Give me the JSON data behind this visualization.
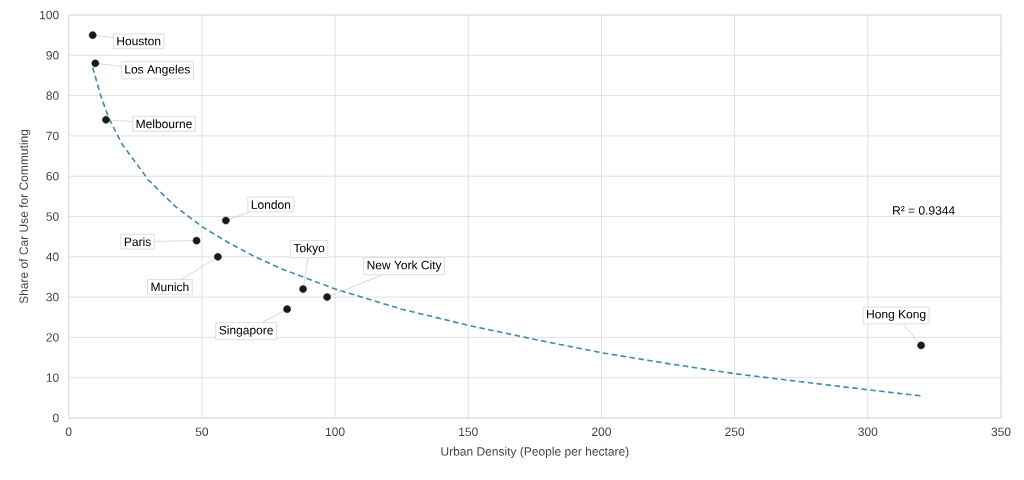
{
  "chart_data": {
    "type": "scatter",
    "xlabel": "Urban Density (People per hectare)",
    "ylabel": "Share of Car Use for Commuting",
    "xlim": [
      0,
      350
    ],
    "ylim": [
      0,
      100
    ],
    "xticks": [
      0,
      50,
      100,
      150,
      200,
      250,
      300,
      350
    ],
    "yticks": [
      0,
      10,
      20,
      30,
      40,
      50,
      60,
      70,
      80,
      90,
      100
    ],
    "grid": true,
    "marker": "circle",
    "series": [
      {
        "color": "#1a1a1a",
        "x": [
          9,
          10,
          14,
          59,
          48,
          56,
          88,
          97,
          82,
          320
        ],
        "values": [
          95,
          88,
          74,
          49,
          44,
          40,
          32,
          30,
          27,
          18
        ]
      },
      {
        "type": "line",
        "color": "#3a8ca8",
        "marker": "none",
        "line_style": "dashed",
        "x": [
          9,
          12,
          15,
          20,
          30,
          40,
          50,
          60,
          70,
          80,
          100,
          125,
          150,
          175,
          200,
          225,
          250,
          275,
          300,
          320
        ],
        "values": [
          87,
          80,
          74.5,
          68,
          59,
          52.5,
          47.5,
          43.5,
          40,
          37,
          32,
          27,
          23,
          19.5,
          16.2,
          13.5,
          11,
          9,
          7,
          5.5
        ]
      }
    ],
    "annotations": [
      {
        "text": "Houston",
        "x": 9,
        "y": 95
      },
      {
        "text": "Los Angeles",
        "x": 10,
        "y": 88
      },
      {
        "text": "Melbourne",
        "x": 14,
        "y": 74
      },
      {
        "text": "London",
        "x": 59,
        "y": 49
      },
      {
        "text": "Paris",
        "x": 48,
        "y": 44
      },
      {
        "text": "Munich",
        "x": 56,
        "y": 40
      },
      {
        "text": "Tokyo",
        "x": 88,
        "y": 32
      },
      {
        "text": "New York City",
        "x": 97,
        "y": 30
      },
      {
        "text": "Singapore",
        "x": 82,
        "y": 27
      },
      {
        "text": "Hong Kong",
        "x": 320,
        "y": 18
      },
      "R² = 0.9344"
    ]
  }
}
